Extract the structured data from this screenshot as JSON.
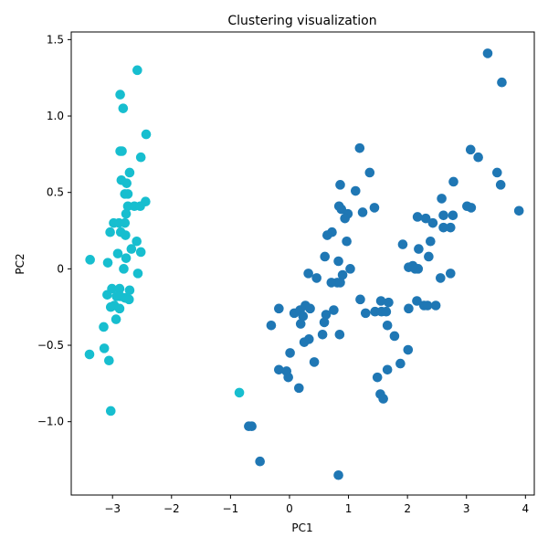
{
  "chart_data": {
    "type": "scatter",
    "title": "Clustering visualization",
    "xlabel": "PC1",
    "ylabel": "PC2",
    "xlim": [
      -3.7,
      4.15
    ],
    "ylim": [
      -1.48,
      1.55
    ],
    "xticks": [
      -3,
      -2,
      -1,
      0,
      1,
      2,
      3,
      4
    ],
    "xtick_labels": [
      "−3",
      "−2",
      "−1",
      "0",
      "1",
      "2",
      "3",
      "4"
    ],
    "yticks": [
      -1.0,
      -0.5,
      0.0,
      0.5,
      1.0,
      1.5
    ],
    "ytick_labels": [
      "−1.0",
      "−0.5",
      "0",
      "0.5",
      "1.0",
      "1.5"
    ],
    "grid": false,
    "legend": "none",
    "series": [
      {
        "color": "#17becf",
        "points": [
          [
            -2.58,
            1.3
          ],
          [
            -2.87,
            1.14
          ],
          [
            -2.82,
            1.05
          ],
          [
            -2.43,
            0.88
          ],
          [
            -2.87,
            0.77
          ],
          [
            -2.84,
            0.77
          ],
          [
            -2.52,
            0.73
          ],
          [
            -2.71,
            0.63
          ],
          [
            -2.85,
            0.58
          ],
          [
            -2.76,
            0.56
          ],
          [
            -2.79,
            0.49
          ],
          [
            -2.74,
            0.49
          ],
          [
            -2.44,
            0.44
          ],
          [
            -2.74,
            0.41
          ],
          [
            -2.63,
            0.41
          ],
          [
            -2.53,
            0.41
          ],
          [
            -2.77,
            0.36
          ],
          [
            -2.98,
            0.3
          ],
          [
            -2.89,
            0.3
          ],
          [
            -2.79,
            0.3
          ],
          [
            -3.04,
            0.24
          ],
          [
            -2.86,
            0.24
          ],
          [
            -2.78,
            0.22
          ],
          [
            -2.59,
            0.18
          ],
          [
            -2.68,
            0.13
          ],
          [
            -2.52,
            0.11
          ],
          [
            -2.91,
            0.1
          ],
          [
            -2.77,
            0.07
          ],
          [
            -3.38,
            0.06
          ],
          [
            -3.08,
            0.04
          ],
          [
            -2.81,
            0.0
          ],
          [
            -2.57,
            -0.03
          ],
          [
            -3.01,
            -0.13
          ],
          [
            -2.88,
            -0.13
          ],
          [
            -2.71,
            -0.14
          ],
          [
            -3.09,
            -0.17
          ],
          [
            -2.93,
            -0.18
          ],
          [
            -2.87,
            -0.18
          ],
          [
            -2.79,
            -0.19
          ],
          [
            -2.72,
            -0.2
          ],
          [
            -2.97,
            -0.24
          ],
          [
            -3.03,
            -0.25
          ],
          [
            -2.88,
            -0.26
          ],
          [
            -2.94,
            -0.33
          ],
          [
            -3.15,
            -0.38
          ],
          [
            -3.14,
            -0.52
          ],
          [
            -3.39,
            -0.56
          ],
          [
            -3.06,
            -0.6
          ],
          [
            -3.03,
            -0.93
          ],
          [
            -0.85,
            -0.81
          ]
        ]
      },
      {
        "color": "#1f77b4",
        "points": [
          [
            3.36,
            1.41
          ],
          [
            3.6,
            1.22
          ],
          [
            3.07,
            0.78
          ],
          [
            3.2,
            0.73
          ],
          [
            3.52,
            0.63
          ],
          [
            3.58,
            0.55
          ],
          [
            3.89,
            0.38
          ],
          [
            2.78,
            0.57
          ],
          [
            2.58,
            0.46
          ],
          [
            2.61,
            0.35
          ],
          [
            2.77,
            0.35
          ],
          [
            2.43,
            0.3
          ],
          [
            2.31,
            0.33
          ],
          [
            2.17,
            0.34
          ],
          [
            3.01,
            0.41
          ],
          [
            3.08,
            0.4
          ],
          [
            2.61,
            0.27
          ],
          [
            2.73,
            0.27
          ],
          [
            2.39,
            0.18
          ],
          [
            2.19,
            0.13
          ],
          [
            2.36,
            0.08
          ],
          [
            2.02,
            0.01
          ],
          [
            2.13,
            0.0
          ],
          [
            2.18,
            0.0
          ],
          [
            2.56,
            -0.06
          ],
          [
            2.73,
            -0.03
          ],
          [
            1.92,
            0.16
          ],
          [
            2.09,
            0.02
          ],
          [
            1.19,
            0.79
          ],
          [
            1.36,
            0.63
          ],
          [
            1.12,
            0.51
          ],
          [
            0.86,
            0.55
          ],
          [
            0.84,
            0.41
          ],
          [
            0.88,
            0.39
          ],
          [
            0.99,
            0.36
          ],
          [
            1.44,
            0.4
          ],
          [
            1.24,
            0.37
          ],
          [
            0.94,
            0.33
          ],
          [
            0.72,
            0.24
          ],
          [
            0.64,
            0.22
          ],
          [
            0.97,
            0.18
          ],
          [
            0.6,
            0.08
          ],
          [
            0.83,
            0.05
          ],
          [
            1.03,
            0.0
          ],
          [
            0.9,
            -0.04
          ],
          [
            0.81,
            -0.09
          ],
          [
            0.71,
            -0.09
          ],
          [
            0.86,
            -0.09
          ],
          [
            0.32,
            -0.03
          ],
          [
            0.46,
            -0.06
          ],
          [
            1.2,
            -0.2
          ],
          [
            1.29,
            -0.29
          ],
          [
            1.55,
            -0.21
          ],
          [
            1.68,
            -0.22
          ],
          [
            1.45,
            -0.28
          ],
          [
            1.56,
            -0.28
          ],
          [
            1.64,
            -0.28
          ],
          [
            2.16,
            -0.21
          ],
          [
            2.28,
            -0.24
          ],
          [
            2.34,
            -0.24
          ],
          [
            2.48,
            -0.24
          ],
          [
            2.02,
            -0.26
          ],
          [
            1.66,
            -0.37
          ],
          [
            1.78,
            -0.44
          ],
          [
            2.01,
            -0.53
          ],
          [
            1.88,
            -0.62
          ],
          [
            1.66,
            -0.66
          ],
          [
            1.49,
            -0.71
          ],
          [
            1.54,
            -0.82
          ],
          [
            1.59,
            -0.85
          ],
          [
            0.08,
            -0.29
          ],
          [
            -0.18,
            -0.26
          ],
          [
            0.18,
            -0.27
          ],
          [
            0.27,
            -0.24
          ],
          [
            0.35,
            -0.26
          ],
          [
            0.23,
            -0.31
          ],
          [
            0.62,
            -0.3
          ],
          [
            0.75,
            -0.27
          ],
          [
            0.59,
            -0.35
          ],
          [
            0.19,
            -0.36
          ],
          [
            -0.31,
            -0.37
          ],
          [
            0.56,
            -0.43
          ],
          [
            0.85,
            -0.43
          ],
          [
            0.33,
            -0.46
          ],
          [
            0.25,
            -0.48
          ],
          [
            0.01,
            -0.55
          ],
          [
            0.42,
            -0.61
          ],
          [
            -0.18,
            -0.66
          ],
          [
            -0.05,
            -0.67
          ],
          [
            -0.02,
            -0.71
          ],
          [
            0.16,
            -0.78
          ],
          [
            -0.69,
            -1.03
          ],
          [
            -0.64,
            -1.03
          ],
          [
            -0.5,
            -1.26
          ],
          [
            0.83,
            -1.35
          ]
        ]
      }
    ]
  }
}
